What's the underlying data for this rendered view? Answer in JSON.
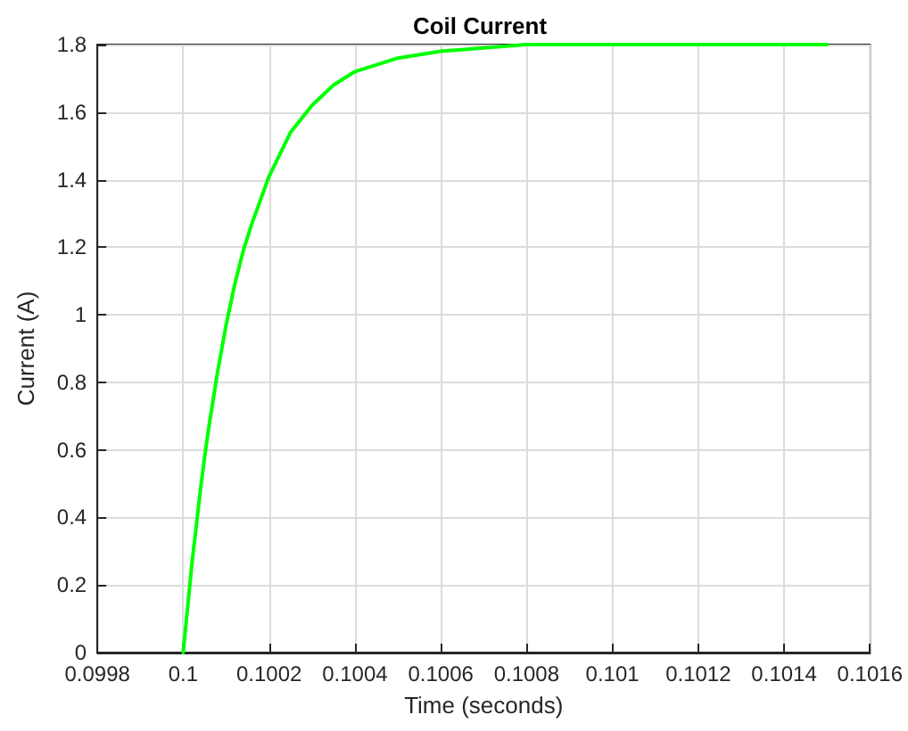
{
  "chart_data": {
    "type": "line",
    "title": "Coil Current",
    "xlabel": "Time (seconds)",
    "ylabel": "Current (A)",
    "x": [
      0.1,
      0.10001,
      0.10002,
      0.10003,
      0.10004,
      0.10005,
      0.10006,
      0.10008,
      0.1001,
      0.10012,
      0.10014,
      0.10016,
      0.1002,
      0.10025,
      0.1003,
      0.10035,
      0.1004,
      0.1005,
      0.1006,
      0.1007,
      0.1008,
      0.101,
      0.1012,
      0.1015
    ],
    "series": [
      {
        "color": "#00ff00",
        "values": [
          0,
          0.13,
          0.26,
          0.37,
          0.48,
          0.58,
          0.67,
          0.83,
          0.97,
          1.09,
          1.19,
          1.27,
          1.41,
          1.54,
          1.62,
          1.68,
          1.72,
          1.76,
          1.78,
          1.79,
          1.8,
          1.8,
          1.8,
          1.8
        ]
      }
    ],
    "xlim": [
      0.0998,
      0.1016
    ],
    "xticks": [
      0.0998,
      0.1,
      0.1002,
      0.1004,
      0.1006,
      0.1008,
      0.101,
      0.1012,
      0.1014,
      0.1016
    ],
    "ylim": [
      0,
      1.8
    ],
    "yticks": [
      0,
      0.2,
      0.4,
      0.6,
      0.8,
      1,
      1.2,
      1.4,
      1.6,
      1.8
    ],
    "grid": true,
    "marker": "none",
    "line_style": "solid"
  }
}
